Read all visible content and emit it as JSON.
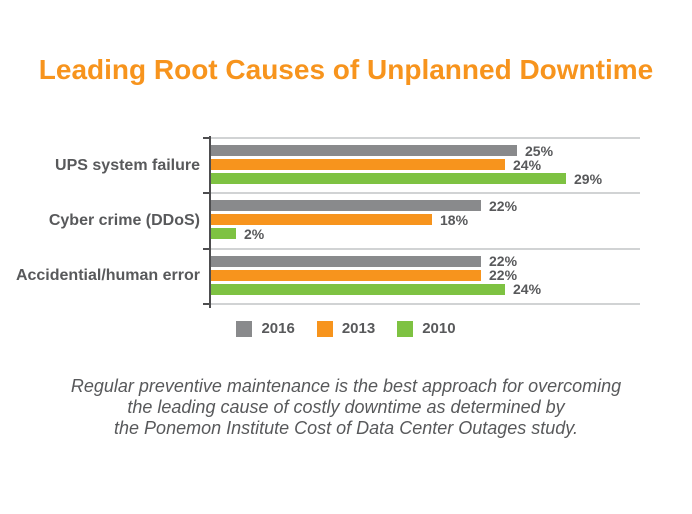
{
  "page": {
    "title": "Leading Root Causes of Unplanned Downtime",
    "caption_lines": [
      "Regular preventive maintenance is the best approach for overcoming",
      "the leading cause of costly downtime as determined by",
      "the Ponemon Institute Cost of Data Center Outages study."
    ]
  },
  "colors": {
    "title_orange": "#F7941D",
    "bar_gray": "#898A8C",
    "bar_orange": "#F7941D",
    "bar_green": "#7EC242",
    "text_dark": "#58595B",
    "axis_dark": "#4D4D4F",
    "gridline_gray": "#D1D3D4",
    "background": "#FFFFFF"
  },
  "chart_data": {
    "type": "bar",
    "orientation": "horizontal",
    "title": "Leading Root Causes of Unplanned Downtime",
    "categories": [
      "UPS system failure",
      "Cyber crime (DDoS)",
      "Accidential/human error"
    ],
    "series": [
      {
        "name": "2016",
        "color": "#898A8C",
        "values": [
          25,
          22,
          22
        ]
      },
      {
        "name": "2013",
        "color": "#F7941D",
        "values": [
          24,
          18,
          22
        ]
      },
      {
        "name": "2010",
        "color": "#7EC242",
        "values": [
          29,
          2,
          24
        ]
      }
    ],
    "value_suffix": "%",
    "xlim": [
      0,
      35
    ],
    "grid": "horizontal group divider lines",
    "legend_position": "bottom-center",
    "data_labels": "bold, right of each bar end"
  }
}
